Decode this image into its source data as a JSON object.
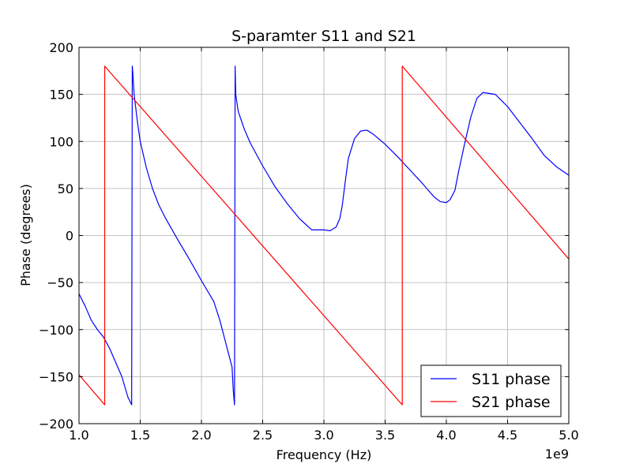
{
  "chart_data": {
    "type": "line",
    "title": "S-paramter S11 and S21",
    "xlabel": "Frequency (Hz)",
    "ylabel": "Phase (degrees)",
    "x_offset_label": "1e9",
    "xlim": [
      1.0,
      5.0
    ],
    "ylim": [
      -200,
      200
    ],
    "x_ticks": [
      1.0,
      1.5,
      2.0,
      2.5,
      3.0,
      3.5,
      4.0,
      4.5,
      5.0
    ],
    "x_tick_labels": [
      "1.0",
      "1.5",
      "2.0",
      "2.5",
      "3.0",
      "3.5",
      "4.0",
      "4.5",
      "5.0"
    ],
    "y_ticks": [
      200,
      150,
      100,
      50,
      0,
      -50,
      -100,
      -150,
      -200
    ],
    "y_tick_labels": [
      "200",
      "150",
      "100",
      "50",
      "0",
      "−50",
      "−100",
      "−150",
      "−200"
    ],
    "grid": true,
    "legend_position": "lower-right",
    "series": [
      {
        "name": "S11 phase",
        "color": "#0000ff",
        "x": [
          1.0,
          1.05,
          1.1,
          1.15,
          1.2,
          1.25,
          1.3,
          1.35,
          1.4,
          1.43,
          1.435,
          1.44,
          1.45,
          1.48,
          1.5,
          1.55,
          1.6,
          1.65,
          1.7,
          1.8,
          1.9,
          2.0,
          2.1,
          2.15,
          2.2,
          2.25,
          2.26,
          2.27,
          2.275,
          2.28,
          2.3,
          2.35,
          2.4,
          2.5,
          2.6,
          2.7,
          2.8,
          2.9,
          3.0,
          3.05,
          3.1,
          3.13,
          3.15,
          3.18,
          3.2,
          3.25,
          3.3,
          3.35,
          3.4,
          3.5,
          3.6,
          3.7,
          3.8,
          3.9,
          3.95,
          4.0,
          4.03,
          4.07,
          4.1,
          4.15,
          4.2,
          4.25,
          4.3,
          4.4,
          4.5,
          4.6,
          4.7,
          4.8,
          4.9,
          5.0
        ],
        "y": [
          -62,
          -75,
          -90,
          -100,
          -108,
          -120,
          -135,
          -150,
          -172,
          -180,
          180,
          172,
          150,
          118,
          100,
          72,
          50,
          33,
          20,
          -3,
          -25,
          -48,
          -70,
          -90,
          -115,
          -140,
          -165,
          -180,
          180,
          150,
          132,
          113,
          98,
          74,
          52,
          34,
          18,
          6,
          6,
          5,
          9,
          18,
          32,
          63,
          82,
          103,
          111,
          112,
          108,
          97,
          84,
          70,
          56,
          41,
          36,
          35,
          38,
          48,
          68,
          98,
          126,
          146,
          152,
          150,
          137,
          120,
          103,
          85,
          73,
          64
        ]
      },
      {
        "name": "S21 phase",
        "color": "#ff0000",
        "x": [
          1.0,
          1.21,
          1.21,
          3.64,
          3.64,
          5.0
        ],
        "y": [
          -148,
          -180,
          180,
          -180,
          180,
          -25
        ]
      }
    ]
  }
}
